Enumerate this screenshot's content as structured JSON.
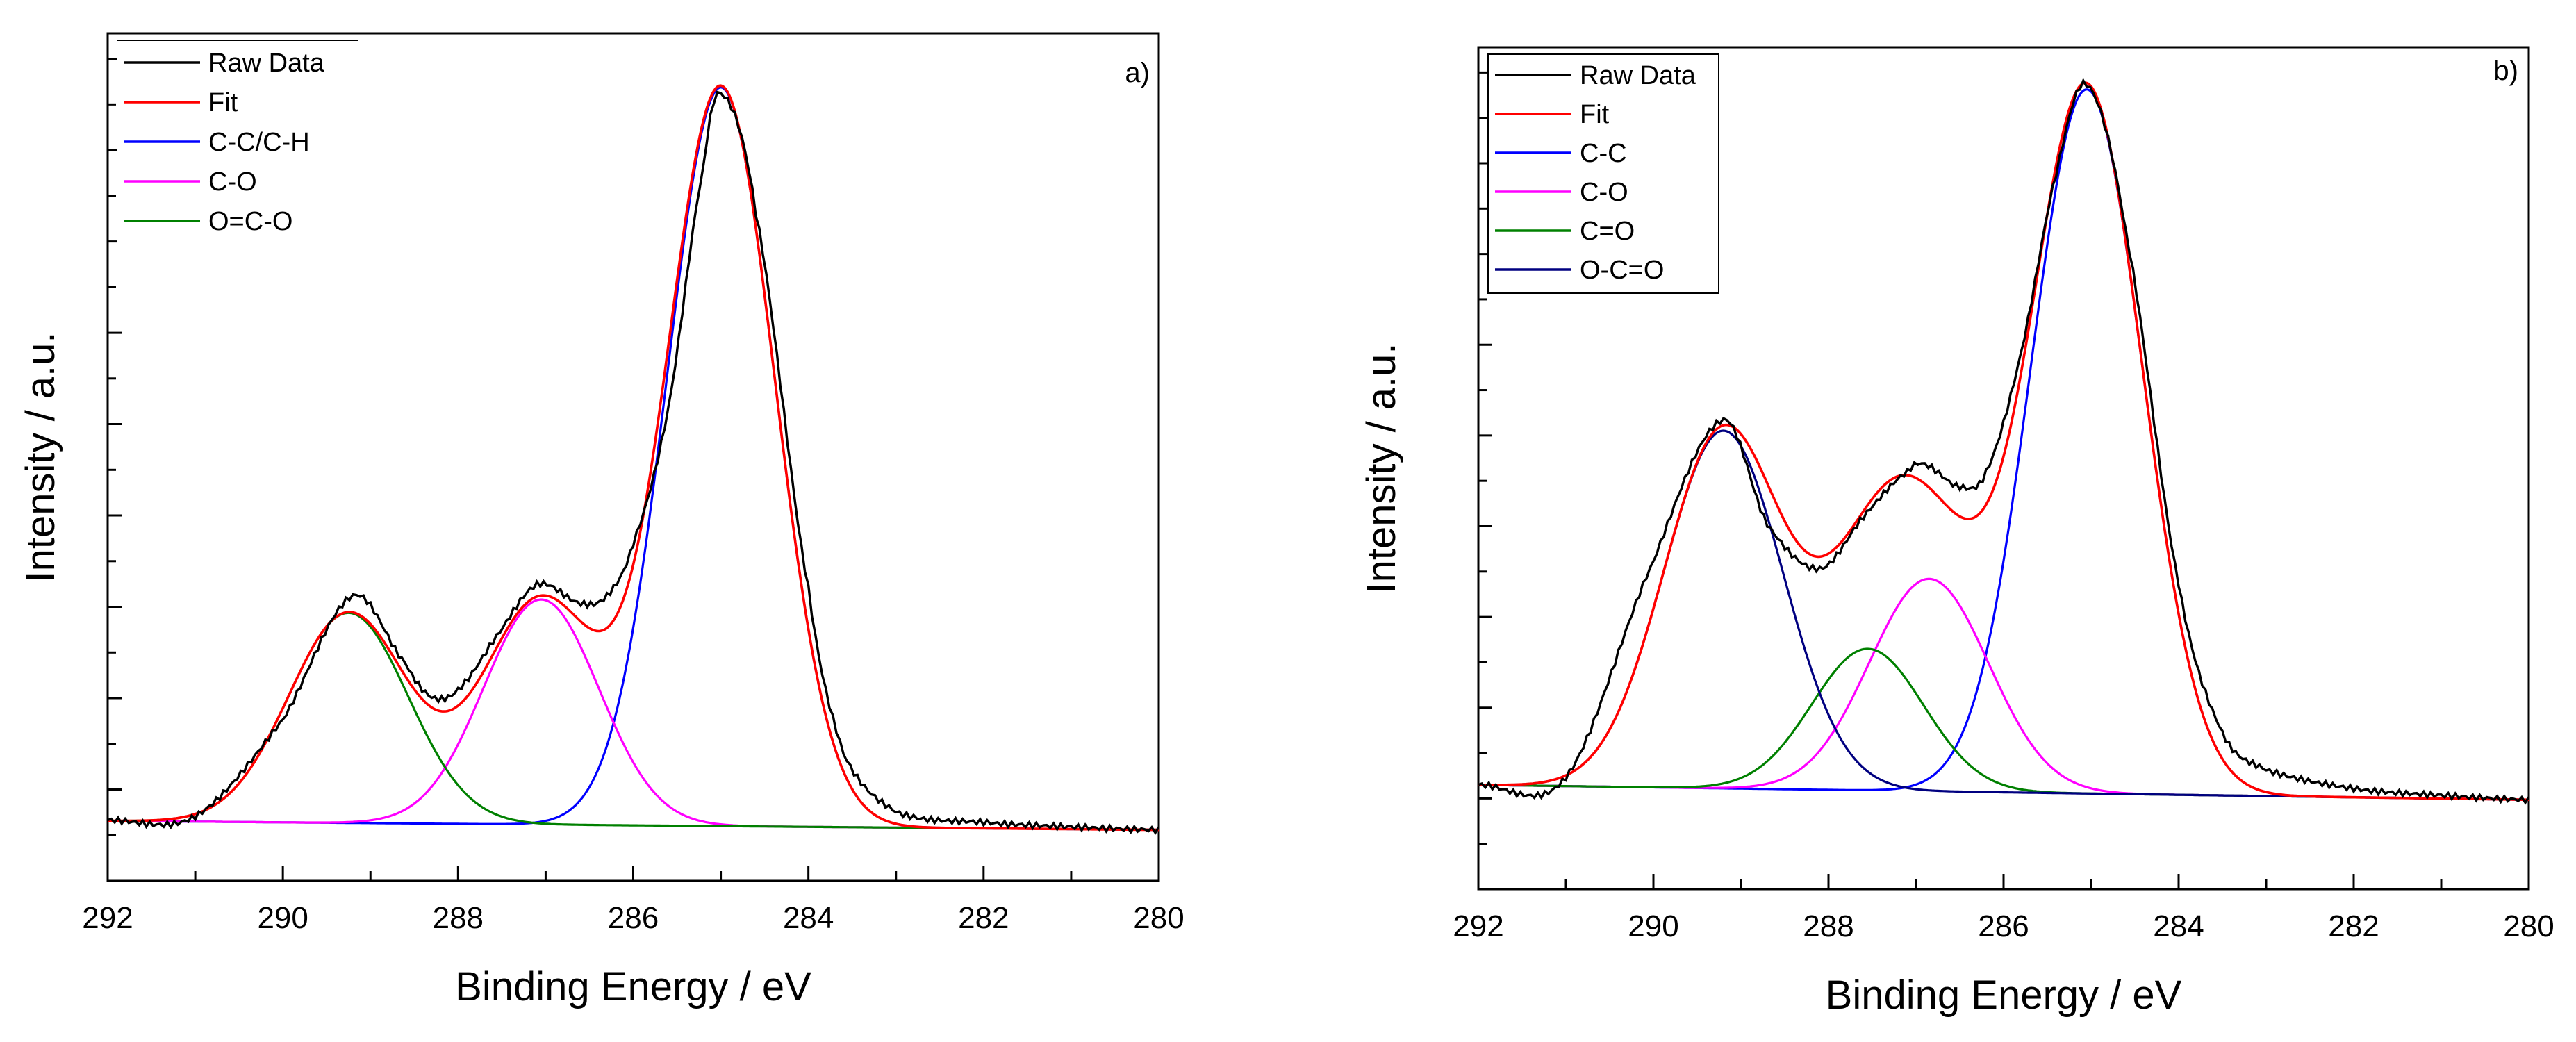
{
  "chart_data": [
    {
      "type": "line",
      "panel_label": "a)",
      "xlabel": "Binding Energy   /  eV",
      "ylabel": "Intensity   /  a.u.",
      "xlim": [
        292,
        280
      ],
      "ylim": [
        -0.05,
        1.08
      ],
      "x_ticks": [
        292,
        290,
        288,
        286,
        284,
        282,
        280
      ],
      "x_tick_labels": [
        "292",
        "290",
        "288",
        "286",
        "284",
        "282",
        "280"
      ],
      "y_tick_labels_shown": false,
      "legend_position": "top-left",
      "baseline": {
        "start": 0.03,
        "end": 0.018
      },
      "components": [
        {
          "name": "C-C/C-H",
          "color": "#0000ff",
          "center": 285.0,
          "height": 0.985,
          "fwhm": 1.45
        },
        {
          "name": "C-O",
          "color": "#ff00ff",
          "center": 287.05,
          "height": 0.3,
          "fwhm": 1.55
        },
        {
          "name": "O=C-O",
          "color": "#008000",
          "center": 289.25,
          "height": 0.28,
          "fwhm": 1.6
        }
      ],
      "raw_data_points": [
        [
          292.0,
          0.031
        ],
        [
          291.0,
          0.036
        ],
        [
          290.0,
          0.165
        ],
        [
          289.2,
          0.33
        ],
        [
          288.6,
          0.24
        ],
        [
          288.3,
          0.195
        ],
        [
          288.0,
          0.205
        ],
        [
          287.6,
          0.27
        ],
        [
          287.1,
          0.345
        ],
        [
          286.6,
          0.32
        ],
        [
          286.3,
          0.33
        ],
        [
          286.0,
          0.4
        ],
        [
          285.6,
          0.58
        ],
        [
          285.2,
          0.9
        ],
        [
          285.0,
          1.0
        ],
        [
          284.6,
          0.84
        ],
        [
          284.0,
          0.34
        ],
        [
          283.6,
          0.12
        ],
        [
          283.0,
          0.042
        ],
        [
          282.0,
          0.028
        ],
        [
          281.0,
          0.022
        ],
        [
          280.0,
          0.018
        ]
      ],
      "series_names": [
        "Raw Data",
        "Fit",
        "C-C/C-H",
        "C-O",
        "O=C-O"
      ],
      "colors": {
        "raw": "#000000",
        "fit": "#ff0000"
      }
    },
    {
      "type": "line",
      "panel_label": "b)",
      "xlabel": "Binding Energy   /  eV",
      "ylabel": "Intensity   /  a.u.",
      "xlim": [
        292,
        280
      ],
      "ylim": [
        -0.08,
        1.05
      ],
      "x_ticks": [
        292,
        290,
        288,
        286,
        284,
        282,
        280
      ],
      "x_tick_labels": [
        "292",
        "290",
        "288",
        "286",
        "284",
        "282",
        "280"
      ],
      "y_tick_labels_shown": false,
      "legend_position": "top-left",
      "baseline": {
        "start": 0.06,
        "end": 0.04
      },
      "components": [
        {
          "name": "C-C",
          "color": "#0000ff",
          "center": 285.05,
          "height": 0.945,
          "fwhm": 1.5
        },
        {
          "name": "C-O",
          "color": "#ff00ff",
          "center": 286.85,
          "height": 0.285,
          "fwhm": 1.6
        },
        {
          "name": "C=O",
          "color": "#008000",
          "center": 287.55,
          "height": 0.19,
          "fwhm": 1.5
        },
        {
          "name": "O-C=O",
          "color": "#000080",
          "center": 289.2,
          "height": 0.48,
          "fwhm": 1.6
        }
      ],
      "raw_data_points": [
        [
          292.0,
          0.06
        ],
        [
          291.0,
          0.07
        ],
        [
          290.0,
          0.36
        ],
        [
          289.2,
          0.55
        ],
        [
          288.7,
          0.41
        ],
        [
          288.1,
          0.35
        ],
        [
          287.6,
          0.42
        ],
        [
          287.1,
          0.48
        ],
        [
          286.9,
          0.49
        ],
        [
          286.5,
          0.46
        ],
        [
          286.2,
          0.48
        ],
        [
          285.8,
          0.64
        ],
        [
          285.4,
          0.88
        ],
        [
          285.05,
          1.0
        ],
        [
          284.6,
          0.8
        ],
        [
          284.0,
          0.33
        ],
        [
          283.5,
          0.13
        ],
        [
          283.0,
          0.08
        ],
        [
          282.0,
          0.055
        ],
        [
          281.0,
          0.046
        ],
        [
          280.0,
          0.04
        ]
      ],
      "series_names": [
        "Raw Data",
        "Fit",
        "C-C",
        "C-O",
        "C=O",
        "O-C=O"
      ],
      "colors": {
        "raw": "#000000",
        "fit": "#ff0000"
      }
    }
  ]
}
